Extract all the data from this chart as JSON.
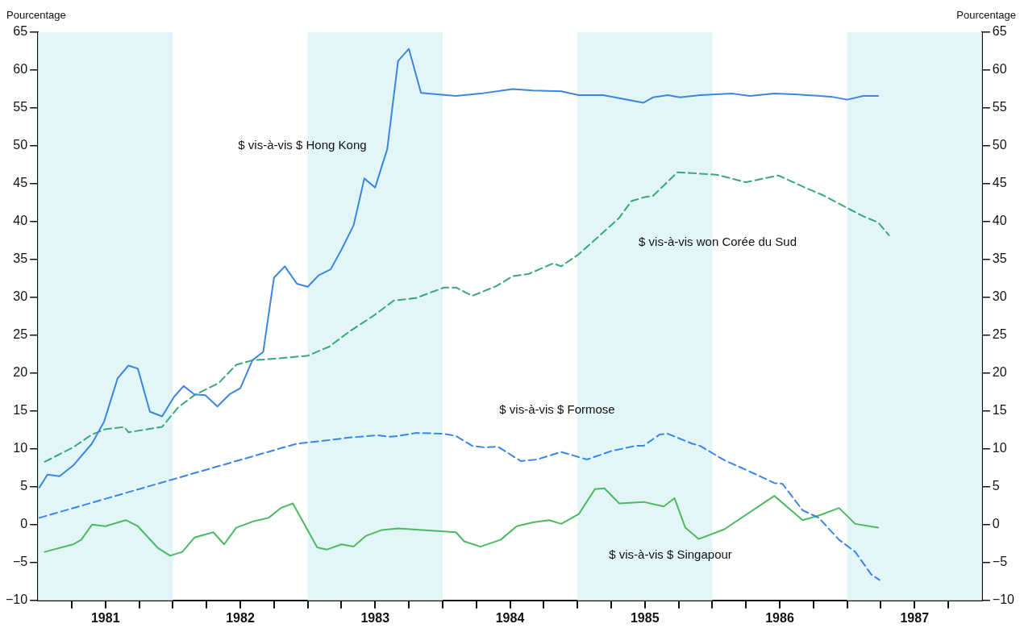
{
  "chart_data": {
    "type": "line",
    "ylabel": "Pourcentage",
    "y2label": "Pourcentage",
    "xlim": [
      1981,
      1988
    ],
    "xticks": [
      {
        "value": 1981.25,
        "label": null
      },
      {
        "value": 1981.5,
        "label": "1981"
      },
      {
        "value": 1981.75,
        "label": null
      },
      {
        "value": 1982,
        "label": null
      },
      {
        "value": 1982.25,
        "label": null
      },
      {
        "value": 1982.5,
        "label": "1982"
      },
      {
        "value": 1982.75,
        "label": null
      },
      {
        "value": 1983,
        "label": null
      },
      {
        "value": 1983.25,
        "label": null
      },
      {
        "value": 1983.5,
        "label": "1983"
      },
      {
        "value": 1983.75,
        "label": null
      },
      {
        "value": 1984,
        "label": null
      },
      {
        "value": 1984.25,
        "label": null
      },
      {
        "value": 1984.5,
        "label": "1984"
      },
      {
        "value": 1984.75,
        "label": null
      },
      {
        "value": 1985,
        "label": null
      },
      {
        "value": 1985.25,
        "label": null
      },
      {
        "value": 1985.5,
        "label": "1985"
      },
      {
        "value": 1985.75,
        "label": null
      },
      {
        "value": 1986,
        "label": null
      },
      {
        "value": 1986.25,
        "label": null
      },
      {
        "value": 1986.5,
        "label": "1986"
      },
      {
        "value": 1986.75,
        "label": null
      },
      {
        "value": 1987,
        "label": null
      },
      {
        "value": 1987.25,
        "label": null
      },
      {
        "value": 1987.5,
        "label": "1987"
      },
      {
        "value": 1987.75,
        "label": null
      }
    ],
    "ylim": [
      -10,
      65
    ],
    "yticks": [
      -10,
      -5,
      0,
      5,
      10,
      15,
      20,
      25,
      30,
      35,
      40,
      45,
      50,
      55,
      60,
      65
    ],
    "y2lim": [
      -10,
      65
    ],
    "y2ticks": [
      -10,
      -5,
      0,
      5,
      10,
      15,
      20,
      25,
      30,
      35,
      40,
      45,
      50,
      55,
      60,
      65
    ],
    "grid": false,
    "legend": false,
    "marker": "none",
    "bands": [
      {
        "axis": "x",
        "from": 1981,
        "to": 1982,
        "color": "#e2f6f8"
      },
      {
        "axis": "x",
        "from": 1983,
        "to": 1984,
        "color": "#e2f6f8"
      },
      {
        "axis": "x",
        "from": 1985,
        "to": 1986,
        "color": "#e2f6f8"
      },
      {
        "axis": "x",
        "from": 1987,
        "to": 1988,
        "color": "#e2f6f8"
      }
    ],
    "series": [
      {
        "name": "$ vis-à-vis $ Hong Kong",
        "color": "#3a86e0",
        "line_style": "solid",
        "x": [
          1981.01,
          1981.07,
          1981.16,
          1981.26,
          1981.4,
          1981.49,
          1981.59,
          1981.67,
          1981.74,
          1981.83,
          1981.92,
          1982.01,
          1982.08,
          1982.16,
          1982.24,
          1982.33,
          1982.42,
          1982.5,
          1982.59,
          1982.67,
          1982.75,
          1982.83,
          1982.92,
          1983.0,
          1983.08,
          1983.17,
          1983.25,
          1983.34,
          1983.42,
          1983.5,
          1983.59,
          1983.67,
          1983.75,
          1983.84,
          1984.1,
          1984.28,
          1984.52,
          1984.67,
          1984.88,
          1985.01,
          1985.19,
          1985.31,
          1985.49,
          1985.56,
          1985.67,
          1985.76,
          1985.91,
          1986.15,
          1986.28,
          1986.46,
          1986.61,
          1986.7,
          1986.88,
          1987.0,
          1987.12,
          1987.23
        ],
        "values": [
          4.9,
          6.6,
          6.4,
          7.8,
          10.7,
          13.6,
          19.3,
          21.0,
          20.6,
          14.9,
          14.3,
          16.9,
          18.3,
          17.2,
          17.1,
          15.6,
          17.2,
          18.0,
          21.7,
          22.8,
          32.6,
          34.1,
          31.8,
          31.4,
          32.9,
          33.7,
          36.3,
          39.5,
          45.7,
          44.5,
          49.6,
          61.2,
          62.8,
          57.0,
          56.6,
          56.9,
          57.5,
          57.3,
          57.2,
          56.7,
          56.7,
          56.3,
          55.7,
          56.4,
          56.7,
          56.4,
          56.7,
          56.9,
          56.6,
          56.9,
          56.8,
          56.7,
          56.5,
          56.1,
          56.6,
          56.6
        ]
      },
      {
        "name": "$ vis-à-vis won Corée du Sud",
        "color": "#3aa878",
        "line_style": "dashed",
        "x": [
          1981.05,
          1981.26,
          1981.4,
          1981.5,
          1981.64,
          1981.67,
          1981.92,
          1982.04,
          1982.16,
          1982.34,
          1982.47,
          1982.59,
          1982.75,
          1983.0,
          1983.16,
          1983.31,
          1983.49,
          1983.64,
          1983.8,
          1984.01,
          1984.1,
          1984.22,
          1984.4,
          1984.52,
          1984.64,
          1984.82,
          1984.88,
          1985.01,
          1985.13,
          1985.31,
          1985.4,
          1985.49,
          1985.56,
          1985.74,
          1985.85,
          1986.03,
          1986.25,
          1986.49,
          1986.7,
          1986.82,
          1987.0,
          1987.12,
          1987.23,
          1987.31
        ],
        "values": [
          8.3,
          10.2,
          11.9,
          12.6,
          12.9,
          12.2,
          12.9,
          15.5,
          17.1,
          18.7,
          21.1,
          21.7,
          21.9,
          22.3,
          23.5,
          25.5,
          27.6,
          29.6,
          29.9,
          31.3,
          31.3,
          30.2,
          31.5,
          32.8,
          33.1,
          34.5,
          34.1,
          35.7,
          37.6,
          40.5,
          42.7,
          43.2,
          43.4,
          46.5,
          46.4,
          46.2,
          45.2,
          46.1,
          44.4,
          43.5,
          41.8,
          40.7,
          39.9,
          38.2
        ]
      },
      {
        "name": "$ vis-à-vis $ Formose",
        "color": "#3a86e8",
        "line_style": "dashed",
        "x": [
          1981.01,
          1982.92,
          1983.13,
          1983.31,
          1983.52,
          1983.61,
          1983.67,
          1983.8,
          1984.01,
          1984.1,
          1984.22,
          1984.31,
          1984.41,
          1984.58,
          1984.7,
          1984.88,
          1985.07,
          1985.25,
          1985.43,
          1985.49,
          1985.61,
          1985.67,
          1985.85,
          1985.91,
          1986.09,
          1986.28,
          1986.46,
          1986.52,
          1986.67,
          1986.79,
          1986.94,
          1987.06,
          1987.18,
          1987.24
        ],
        "values": [
          0.9,
          10.7,
          11.1,
          11.5,
          11.8,
          11.6,
          11.7,
          12.1,
          12.0,
          11.7,
          10.4,
          10.2,
          10.3,
          8.4,
          8.6,
          9.6,
          8.6,
          9.7,
          10.4,
          10.4,
          11.9,
          12.0,
          10.7,
          10.4,
          8.5,
          7.0,
          5.5,
          5.4,
          1.9,
          0.9,
          -2.0,
          -3.6,
          -6.6,
          -7.3
        ]
      },
      {
        "name": "$ vis-à-vis $ Singapour",
        "color": "#4cba60",
        "line_style": "solid",
        "x": [
          1981.05,
          1981.26,
          1981.32,
          1981.4,
          1981.5,
          1981.65,
          1981.74,
          1981.89,
          1981.98,
          1982.07,
          1982.16,
          1982.3,
          1982.38,
          1982.47,
          1982.59,
          1982.71,
          1982.8,
          1982.89,
          1983.07,
          1983.14,
          1983.25,
          1983.34,
          1983.43,
          1983.55,
          1983.67,
          1983.85,
          1984.1,
          1984.16,
          1984.28,
          1984.43,
          1984.55,
          1984.67,
          1984.79,
          1984.88,
          1985.01,
          1985.13,
          1985.2,
          1985.31,
          1985.49,
          1985.64,
          1985.72,
          1985.8,
          1985.9,
          1986.09,
          1986.46,
          1986.67,
          1986.79,
          1986.94,
          1987.06,
          1987.23
        ],
        "values": [
          -3.6,
          -2.6,
          -2.0,
          0.0,
          -0.2,
          0.6,
          -0.2,
          -3.1,
          -4.1,
          -3.6,
          -1.7,
          -1.0,
          -2.6,
          -0.4,
          0.4,
          0.9,
          2.2,
          2.8,
          -3.0,
          -3.3,
          -2.6,
          -2.9,
          -1.5,
          -0.7,
          -0.5,
          -0.7,
          -1.0,
          -2.2,
          -2.9,
          -2.0,
          -0.2,
          0.3,
          0.6,
          0.1,
          1.4,
          4.7,
          4.8,
          2.8,
          3.0,
          2.4,
          3.5,
          -0.4,
          -1.9,
          -0.6,
          3.8,
          0.6,
          1.2,
          2.2,
          0.1,
          -0.4
        ]
      }
    ]
  }
}
